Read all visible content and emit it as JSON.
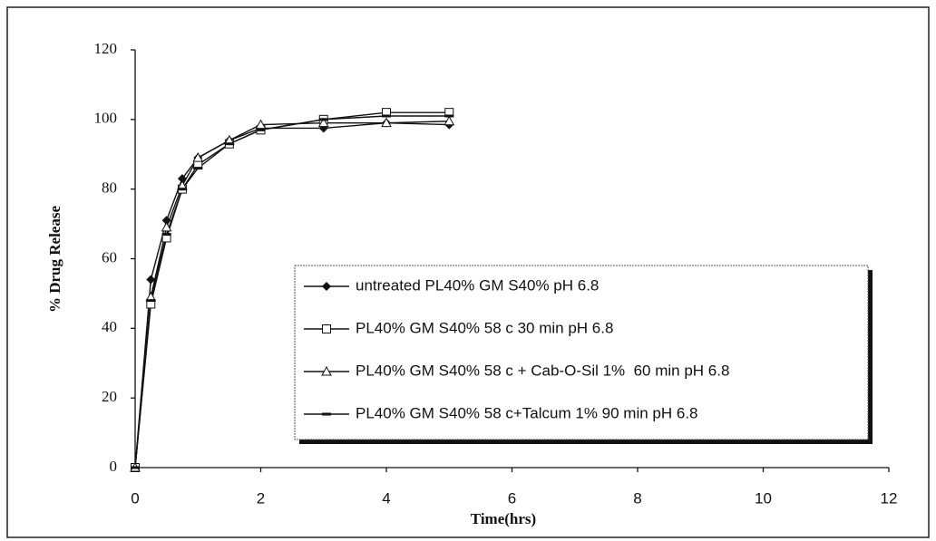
{
  "chart_data": {
    "type": "line",
    "x_label": "Time(hrs)",
    "y_label": "% Drug Release",
    "x": [
      0,
      0.25,
      0.5,
      0.75,
      1,
      1.5,
      2,
      3,
      4,
      5
    ],
    "series": [
      {
        "name": "untreated PL40% GM S40% pH 6.8",
        "color": "#111111",
        "marker": "diamond",
        "values": [
          0,
          54,
          71,
          83,
          89,
          94,
          97.5,
          97.5,
          99,
          98.5
        ]
      },
      {
        "name": "PL40% GM S40% 58 c 30 min pH 6.8",
        "color": "#111111",
        "marker": "square",
        "values": [
          0,
          47,
          66,
          80,
          87,
          93,
          97,
          100,
          102,
          102
        ]
      },
      {
        "name": "PL40% GM S40% 58 c + Cab-O-Sil 1%  60 min pH 6.8",
        "color": "#111111",
        "marker": "triangle",
        "values": [
          0,
          49,
          69,
          81,
          89,
          94,
          98.5,
          99,
          99,
          99.5
        ]
      },
      {
        "name": "PL40% GM S40% 58 c+Talcum 1% 90 min pH 6.8",
        "color": "#111111",
        "marker": "dash",
        "values": [
          0,
          48,
          67,
          80,
          86,
          93,
          97,
          100,
          101,
          101
        ]
      }
    ],
    "xlim": [
      0,
      12
    ],
    "xticks": [
      0,
      2,
      4,
      6,
      8,
      10,
      12
    ],
    "ylim": [
      0,
      120
    ],
    "yticks": [
      0,
      20,
      40,
      60,
      80,
      100,
      120
    ],
    "grid": false
  }
}
